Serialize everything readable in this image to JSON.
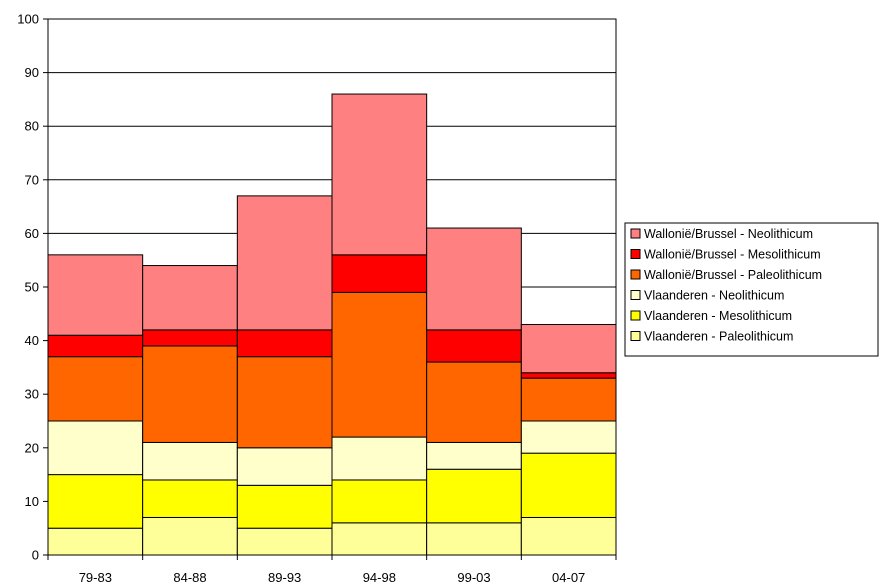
{
  "chart_data": {
    "type": "bar",
    "stacked": true,
    "categories": [
      "79-83",
      "84-88",
      "89-93",
      "94-98",
      "99-03",
      "04-07"
    ],
    "ylim": [
      0,
      100
    ],
    "yticks": [
      0,
      10,
      20,
      30,
      40,
      50,
      60,
      70,
      80,
      90,
      100
    ],
    "grid": true,
    "legend_position": "right",
    "series": [
      {
        "name": "Vlaanderen - Paleolithicum",
        "color": "#FFFF99",
        "values": [
          5,
          7,
          5,
          6,
          6,
          7
        ]
      },
      {
        "name": "Vlaanderen - Mesolithicum",
        "color": "#FFFF00",
        "values": [
          10,
          7,
          8,
          8,
          10,
          12
        ]
      },
      {
        "name": "Vlaanderen - Neolithicum",
        "color": "#FFFFCC",
        "values": [
          10,
          7,
          7,
          8,
          5,
          6
        ]
      },
      {
        "name": "Wallonië/Brussel - Paleolithicum",
        "color": "#FF6600",
        "values": [
          12,
          18,
          17,
          27,
          15,
          8
        ]
      },
      {
        "name": "Wallonië/Brussel - Mesolithicum",
        "color": "#FF0000",
        "values": [
          4,
          3,
          5,
          7,
          6,
          1
        ]
      },
      {
        "name": "Wallonië/Brussel - Neolithicum",
        "color": "#FF8080",
        "values": [
          15,
          12,
          25,
          30,
          19,
          9
        ]
      }
    ]
  }
}
